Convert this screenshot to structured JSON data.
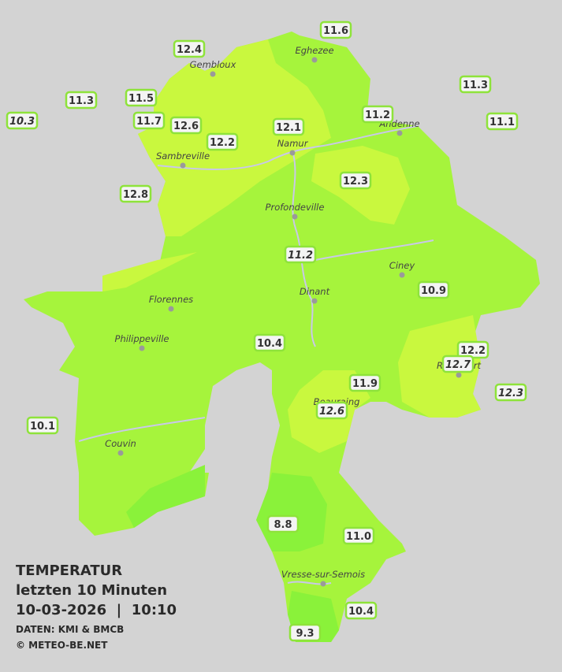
{
  "legend": {
    "title": "TEMPERATUR",
    "subtitle": "letzten 10 Minuten",
    "datetime": "10-03-2026  |  10:10",
    "source": "DATEN: KMI & BMCB",
    "copyright": "© METEO-BE.NET"
  },
  "cities": [
    "Eghezee",
    "Gembloux",
    "Andenne",
    "Namur",
    "Sambreville",
    "Profondeville",
    "Ciney",
    "Dinant",
    "Florennes",
    "Philippeville",
    "Rochefort",
    "Beauraing",
    "Couvin",
    "Vresse-sur-Semois"
  ],
  "stations": [
    {
      "label": "12.4",
      "italic": false
    },
    {
      "label": "11.6",
      "italic": false
    },
    {
      "label": "11.3",
      "italic": false
    },
    {
      "label": "11.5",
      "italic": false
    },
    {
      "label": "10.3",
      "italic": true
    },
    {
      "label": "11.7",
      "italic": false
    },
    {
      "label": "12.6",
      "italic": false
    },
    {
      "label": "12.1",
      "italic": false
    },
    {
      "label": "11.2",
      "italic": false
    },
    {
      "label": "11.3",
      "italic": false
    },
    {
      "label": "11.1",
      "italic": false
    },
    {
      "label": "12.2",
      "italic": false
    },
    {
      "label": "12.3",
      "italic": false
    },
    {
      "label": "12.8",
      "italic": false
    },
    {
      "label": "11.2",
      "italic": true
    },
    {
      "label": "10.9",
      "italic": false
    },
    {
      "label": "10.4",
      "italic": false
    },
    {
      "label": "12.2",
      "italic": false
    },
    {
      "label": "12.7",
      "italic": true
    },
    {
      "label": "11.9",
      "italic": false
    },
    {
      "label": "12.6",
      "italic": true
    },
    {
      "label": "12.3",
      "italic": true
    },
    {
      "label": "10.1",
      "italic": false
    },
    {
      "label": "8.8",
      "italic": false
    },
    {
      "label": "11.0",
      "italic": false
    },
    {
      "label": "10.4",
      "italic": false
    },
    {
      "label": "9.3",
      "italic": false
    }
  ]
}
